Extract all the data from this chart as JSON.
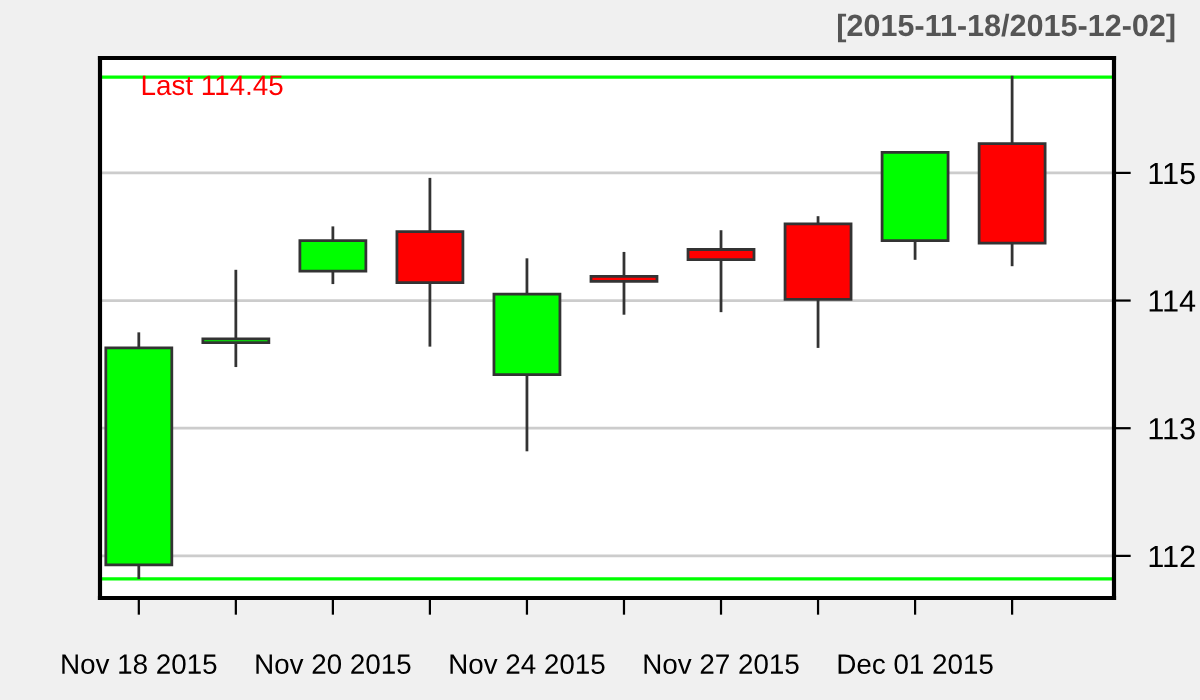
{
  "chart_data": {
    "type": "candlestick",
    "subtitle": "[2015-11-18/2015-12-02]",
    "categories": [
      "Nov 18 2015",
      null,
      "Nov 20 2015",
      null,
      "Nov 24 2015",
      null,
      "Nov 27 2015",
      null,
      "Dec 01 2015",
      null
    ],
    "ohlc": [
      [
        111.93,
        113.74,
        111.83,
        113.63
      ],
      [
        113.67,
        114.23,
        113.49,
        113.7
      ],
      [
        114.23,
        114.57,
        114.14,
        114.47
      ],
      [
        114.54,
        114.95,
        113.65,
        114.14
      ],
      [
        113.42,
        114.32,
        112.83,
        114.05
      ],
      [
        114.19,
        114.37,
        113.9,
        114.15
      ],
      [
        114.4,
        114.54,
        113.92,
        114.32
      ],
      [
        114.6,
        114.65,
        113.64,
        114.01
      ],
      [
        114.47,
        115.16,
        114.33,
        115.16
      ],
      [
        115.23,
        115.75,
        114.28,
        114.45
      ]
    ],
    "colors": [
      "#00ff00",
      "#00ff00",
      "#00ff00",
      "#ff0000",
      "#00ff00",
      "#ff0000",
      "#ff0000",
      "#ff0000",
      "#00ff00",
      "#ff0000"
    ],
    "ylim": [
      111.67,
      115.9
    ],
    "yticks": [
      112,
      113,
      114,
      115
    ],
    "grid": "y",
    "ref_lines": [
      {
        "axis": "y",
        "value": 115.75,
        "color": "#00ff00"
      },
      {
        "axis": "y",
        "value": 111.82,
        "color": "#00ff00"
      }
    ],
    "annotations": [
      "Last 114.45"
    ]
  }
}
